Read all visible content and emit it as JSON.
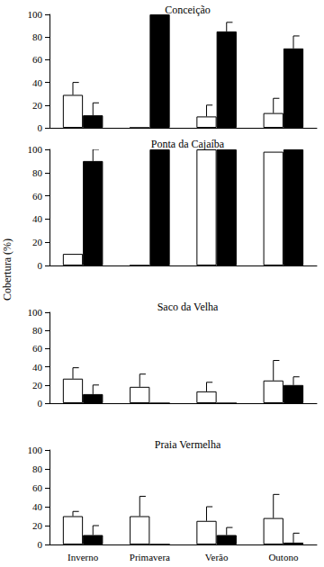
{
  "ylabel": "Cobertura (%)",
  "chart_data": [
    {
      "type": "bar",
      "title": "Conceição",
      "categories": [
        "Inverno",
        "Primavera",
        "Verão",
        "Outono"
      ],
      "series": [
        {
          "color": "#ffffff",
          "values": [
            29,
            0,
            10,
            13
          ],
          "errors": [
            11,
            0,
            10,
            13
          ]
        },
        {
          "color": "#000000",
          "values": [
            11,
            100,
            85,
            70
          ],
          "errors": [
            11,
            0,
            8,
            11
          ]
        }
      ],
      "ylim": [
        0,
        100
      ],
      "yticks": [
        0,
        20,
        40,
        60,
        80,
        100
      ],
      "grid": false,
      "tick_labels": "y"
    },
    {
      "type": "bar",
      "title": "Ponta da Cajaíba",
      "categories": [
        "Inverno",
        "Primavera",
        "Verão",
        "Outono"
      ],
      "series": [
        {
          "color": "#ffffff",
          "values": [
            10,
            0,
            100,
            98
          ],
          "errors": [
            0,
            0,
            0,
            0
          ]
        },
        {
          "color": "#000000",
          "values": [
            90,
            100,
            100,
            100
          ],
          "errors": [
            10,
            0,
            0,
            0
          ]
        }
      ],
      "ylim": [
        0,
        100
      ],
      "yticks": [
        0,
        20,
        40,
        60,
        80,
        100
      ],
      "grid": false,
      "tick_labels": "y"
    },
    {
      "type": "bar",
      "title": "Saco da Velha",
      "categories": [
        "Inverno",
        "Primavera",
        "Verão",
        "Outono"
      ],
      "series": [
        {
          "color": "#ffffff",
          "values": [
            27,
            18,
            13,
            25
          ],
          "errors": [
            12,
            14,
            10,
            22
          ]
        },
        {
          "color": "#000000",
          "values": [
            10,
            0,
            0,
            20
          ],
          "errors": [
            10,
            0,
            0,
            9
          ]
        }
      ],
      "ylim": [
        0,
        100
      ],
      "yticks": [
        0,
        20,
        40,
        60,
        80,
        100
      ],
      "grid": false,
      "tick_labels": "y"
    },
    {
      "type": "bar",
      "title": "Praia Vermelha",
      "categories": [
        "Inverno",
        "Primavera",
        "Verão",
        "Outono"
      ],
      "series": [
        {
          "color": "#ffffff",
          "values": [
            30,
            30,
            25,
            28
          ],
          "errors": [
            5,
            21,
            15,
            25
          ]
        },
        {
          "color": "#000000",
          "values": [
            10,
            0,
            10,
            2
          ],
          "errors": [
            10,
            0,
            8,
            10
          ]
        }
      ],
      "ylim": [
        0,
        100
      ],
      "yticks": [
        0,
        20,
        40,
        60,
        80,
        100
      ],
      "grid": false
    }
  ]
}
